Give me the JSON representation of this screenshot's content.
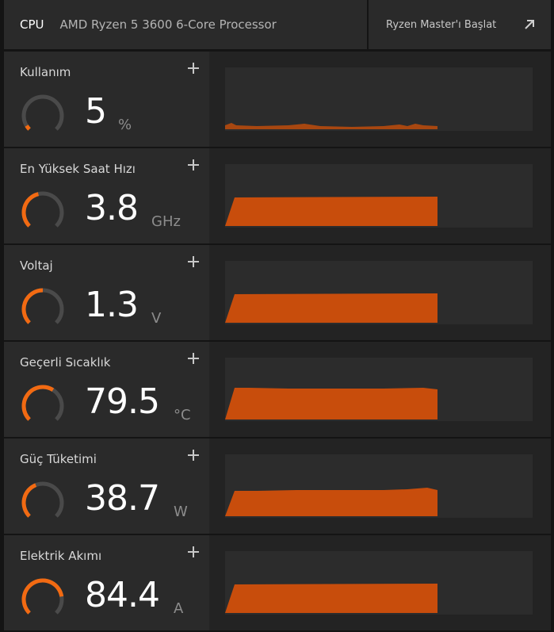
{
  "header": {
    "cpu_label": "CPU",
    "cpu_name": "AMD Ryzen 5 3600 6-Core Processor",
    "launch_label": "Ryzen Master'ı Başlat",
    "launch_icon": "arrow-up-right-icon"
  },
  "colors": {
    "accent": "#f26a12",
    "fill": "#c84d0c",
    "panel_bg": "#2a2a2a",
    "graph_bg": "#2c2c2c",
    "gauge_track": "#4a4a4a"
  },
  "panels": [
    {
      "title": "Kullanım",
      "value": "5",
      "unit": "%",
      "gauge_level": 0.05,
      "graph": "usage"
    },
    {
      "title": "En Yüksek Saat Hızı",
      "value": "3.8",
      "unit": "GHz",
      "gauge_level": 0.45,
      "graph": "flat"
    },
    {
      "title": "Voltaj",
      "value": "1.3",
      "unit": "V",
      "gauge_level": 0.5,
      "graph": "flat"
    },
    {
      "title": "Geçerli Sıcaklık",
      "value": "79.5",
      "unit": "°C",
      "gauge_level": 0.62,
      "graph": "temp"
    },
    {
      "title": "Güç Tüketimi",
      "value": "38.7",
      "unit": "W",
      "gauge_level": 0.42,
      "graph": "power"
    },
    {
      "title": "Elektrik Akımı",
      "value": "84.4",
      "unit": "A",
      "gauge_level": 0.8,
      "graph": "flat"
    }
  ]
}
